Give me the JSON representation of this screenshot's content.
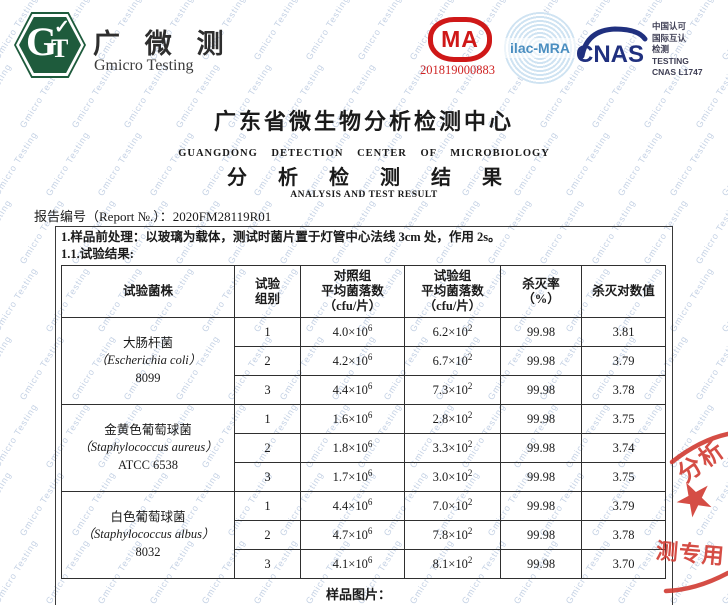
{
  "watermark": {
    "text": "Gmicro Testing"
  },
  "header": {
    "logo": {
      "monogram_g": "G",
      "monogram_t": "T",
      "check": "✓",
      "name_cn": "广 微 测",
      "name_en": "Gmicro Testing"
    },
    "cma": {
      "text": "MA",
      "number": "201819000883"
    },
    "ilac": {
      "text": "ilac-MRA"
    },
    "cnas": {
      "text": "CNAS",
      "info_lines": [
        "中国认可",
        "国际互认",
        "检测",
        "TESTING",
        "CNAS L1747"
      ]
    }
  },
  "titles": {
    "center_cn": "广东省微生物分析检测中心",
    "center_en": "GUANGDONG DETECTION CENTER OF MICROBIOLOGY",
    "result_cn": "分 析 检 测 结 果",
    "result_en": "ANALYSIS AND TEST RESULT"
  },
  "report": {
    "label": "报告编号（Report №.）：",
    "number": "2020FM28119R01"
  },
  "notes": {
    "pretreatment": "1.样品前处理：以玻璃为载体，测试时菌片置于灯管中心法线 3cm 处，作用 2s。",
    "results_label": "1.1.试验结果:",
    "sample_picture": "样品图片："
  },
  "table": {
    "headers": {
      "strain": "试验菌株",
      "group": [
        "试验",
        "组别"
      ],
      "control": [
        "对照组",
        "平均菌落数",
        "（cfu/片）"
      ],
      "test": [
        "试验组",
        "平均菌落数",
        "（cfu/片）"
      ],
      "kill": [
        "杀灭率",
        "（%）"
      ],
      "log": "杀灭对数值"
    },
    "groups": [
      {
        "name_cn": "大肠杆菌",
        "name_latin": "（Escherichia coli）",
        "strain_no": "8099",
        "rows": [
          {
            "no": "1",
            "control_base": "4.0×10",
            "control_exp": "6",
            "test_base": "6.2×10",
            "test_exp": "2",
            "kill": "99.98",
            "log": "3.81"
          },
          {
            "no": "2",
            "control_base": "4.2×10",
            "control_exp": "6",
            "test_base": "6.7×10",
            "test_exp": "2",
            "kill": "99.98",
            "log": "3.79"
          },
          {
            "no": "3",
            "control_base": "4.4×10",
            "control_exp": "6",
            "test_base": "7.3×10",
            "test_exp": "2",
            "kill": "99.98",
            "log": "3.78"
          }
        ]
      },
      {
        "name_cn": "金黄色葡萄球菌",
        "name_latin": "（Staphylococcus aureus）",
        "strain_no": "ATCC 6538",
        "rows": [
          {
            "no": "1",
            "control_base": "1.6×10",
            "control_exp": "6",
            "test_base": "2.8×10",
            "test_exp": "2",
            "kill": "99.98",
            "log": "3.75"
          },
          {
            "no": "2",
            "control_base": "1.8×10",
            "control_exp": "6",
            "test_base": "3.3×10",
            "test_exp": "2",
            "kill": "99.98",
            "log": "3.74"
          },
          {
            "no": "3",
            "control_base": "1.7×10",
            "control_exp": "6",
            "test_base": "3.0×10",
            "test_exp": "2",
            "kill": "99.98",
            "log": "3.75"
          }
        ]
      },
      {
        "name_cn": "白色葡萄球菌",
        "name_latin": "（Staphylococcus albus）",
        "strain_no": "8032",
        "rows": [
          {
            "no": "1",
            "control_base": "4.4×10",
            "control_exp": "6",
            "test_base": "7.0×10",
            "test_exp": "2",
            "kill": "99.98",
            "log": "3.79"
          },
          {
            "no": "2",
            "control_base": "4.7×10",
            "control_exp": "6",
            "test_base": "7.8×10",
            "test_exp": "2",
            "kill": "99.98",
            "log": "3.78"
          },
          {
            "no": "3",
            "control_base": "4.1×10",
            "control_exp": "6",
            "test_base": "8.1×10",
            "test_exp": "2",
            "kill": "99.98",
            "log": "3.70"
          }
        ]
      }
    ]
  },
  "stamp": {
    "star": "★",
    "text_top": "分析",
    "text_bottom": "测专用"
  }
}
